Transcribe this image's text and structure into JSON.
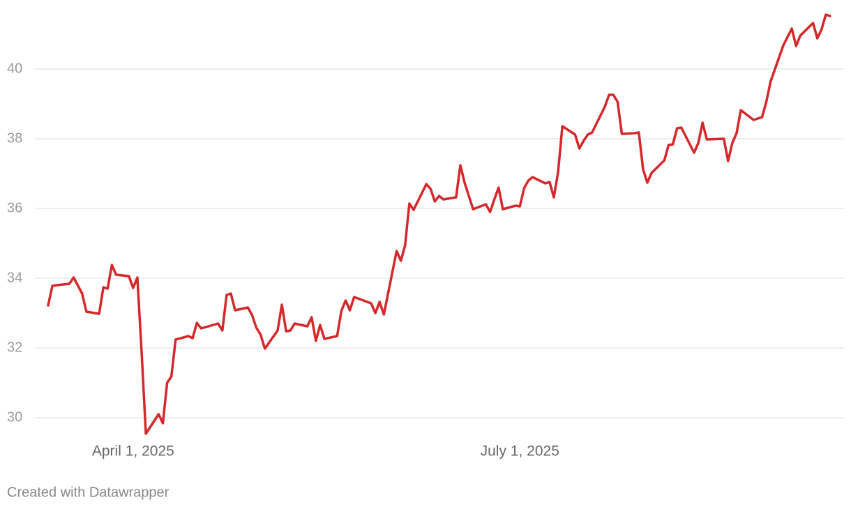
{
  "chart_data": {
    "type": "line",
    "credit": "Created with Datawrapper",
    "color": "#d4282b",
    "grid": true,
    "x": [
      "2025-03-12",
      "2025-03-13",
      "2025-03-14",
      "2025-03-17",
      "2025-03-18",
      "2025-03-20",
      "2025-03-21",
      "2025-03-24",
      "2025-03-25",
      "2025-03-26",
      "2025-03-27",
      "2025-03-28",
      "2025-03-31",
      "2025-04-01",
      "2025-04-02",
      "2025-04-03",
      "2025-04-04",
      "2025-04-07",
      "2025-04-08",
      "2025-04-09",
      "2025-04-10",
      "2025-04-11",
      "2025-04-14",
      "2025-04-15",
      "2025-04-16",
      "2025-04-17",
      "2025-04-21",
      "2025-04-22",
      "2025-04-23",
      "2025-04-24",
      "2025-04-25",
      "2025-04-28",
      "2025-04-29",
      "2025-04-30",
      "2025-05-01",
      "2025-05-02",
      "2025-05-05",
      "2025-05-06",
      "2025-05-07",
      "2025-05-08",
      "2025-05-09",
      "2025-05-12",
      "2025-05-13",
      "2025-05-14",
      "2025-05-15",
      "2025-05-16",
      "2025-05-19",
      "2025-05-20",
      "2025-05-21",
      "2025-05-22",
      "2025-05-23",
      "2025-05-27",
      "2025-05-28",
      "2025-05-29",
      "2025-05-30",
      "2025-06-02",
      "2025-06-03",
      "2025-06-04",
      "2025-06-05",
      "2025-06-06",
      "2025-06-09",
      "2025-06-10",
      "2025-06-11",
      "2025-06-12",
      "2025-06-13",
      "2025-06-16",
      "2025-06-17",
      "2025-06-18",
      "2025-06-20",
      "2025-06-23",
      "2025-06-24",
      "2025-06-25",
      "2025-06-26",
      "2025-06-27",
      "2025-06-30",
      "2025-07-01",
      "2025-07-02",
      "2025-07-03",
      "2025-07-04",
      "2025-07-07",
      "2025-07-08",
      "2025-07-09",
      "2025-07-10",
      "2025-07-11",
      "2025-07-14",
      "2025-07-15",
      "2025-07-16",
      "2025-07-17",
      "2025-07-18",
      "2025-07-21",
      "2025-07-22",
      "2025-07-23",
      "2025-07-24",
      "2025-07-25",
      "2025-07-28",
      "2025-07-29",
      "2025-07-30",
      "2025-07-31",
      "2025-08-01",
      "2025-08-04",
      "2025-08-05",
      "2025-08-06",
      "2025-08-07",
      "2025-08-08",
      "2025-08-11",
      "2025-08-12",
      "2025-08-13",
      "2025-08-14",
      "2025-08-18",
      "2025-08-19",
      "2025-08-20",
      "2025-08-21",
      "2025-08-22",
      "2025-08-25",
      "2025-08-27",
      "2025-08-28",
      "2025-08-29",
      "2025-09-01",
      "2025-09-03",
      "2025-09-04",
      "2025-09-05",
      "2025-09-08",
      "2025-09-09",
      "2025-09-10",
      "2025-09-11",
      "2025-09-12"
    ],
    "values": [
      33.22,
      33.78,
      33.8,
      33.84,
      34.02,
      33.56,
      33.04,
      32.98,
      33.74,
      33.7,
      34.38,
      34.1,
      34.06,
      33.72,
      34.02,
      31.88,
      29.54,
      30.1,
      29.84,
      31.0,
      31.18,
      32.24,
      32.34,
      32.28,
      32.72,
      32.56,
      32.7,
      32.5,
      33.52,
      33.56,
      33.08,
      33.16,
      32.94,
      32.58,
      32.38,
      31.98,
      32.5,
      33.24,
      32.48,
      32.5,
      32.7,
      32.62,
      32.88,
      32.2,
      32.66,
      32.26,
      32.34,
      33.06,
      33.36,
      33.08,
      33.46,
      33.28,
      33.0,
      33.32,
      32.96,
      34.78,
      34.5,
      34.94,
      36.14,
      35.96,
      36.7,
      36.56,
      36.2,
      36.36,
      36.26,
      36.32,
      37.24,
      36.74,
      35.98,
      36.12,
      35.9,
      36.26,
      36.6,
      35.98,
      36.08,
      36.06,
      36.58,
      36.8,
      36.9,
      36.72,
      36.76,
      36.32,
      37.04,
      38.36,
      38.12,
      37.72,
      37.94,
      38.12,
      38.18,
      38.92,
      39.26,
      39.26,
      39.06,
      38.14,
      38.16,
      38.18,
      37.12,
      36.74,
      37.02,
      37.38,
      37.82,
      37.84,
      38.3,
      38.32,
      37.6,
      37.88,
      38.46,
      37.98,
      38.0,
      37.36,
      37.88,
      38.16,
      38.82,
      38.54,
      38.62,
      39.06,
      39.64,
      40.68,
      41.16,
      40.66,
      40.96,
      41.32,
      40.88,
      41.14,
      41.56,
      41.52
    ],
    "xlim": [
      "2025-03-12",
      "2025-09-12"
    ],
    "xticks": [
      {
        "value": "2025-04-01",
        "label": "April 1, 2025"
      },
      {
        "value": "2025-07-01",
        "label": "July 1, 2025"
      }
    ],
    "ylim": [
      29.5,
      41.6
    ],
    "yticks": [
      30,
      32,
      34,
      36,
      38,
      40
    ]
  }
}
